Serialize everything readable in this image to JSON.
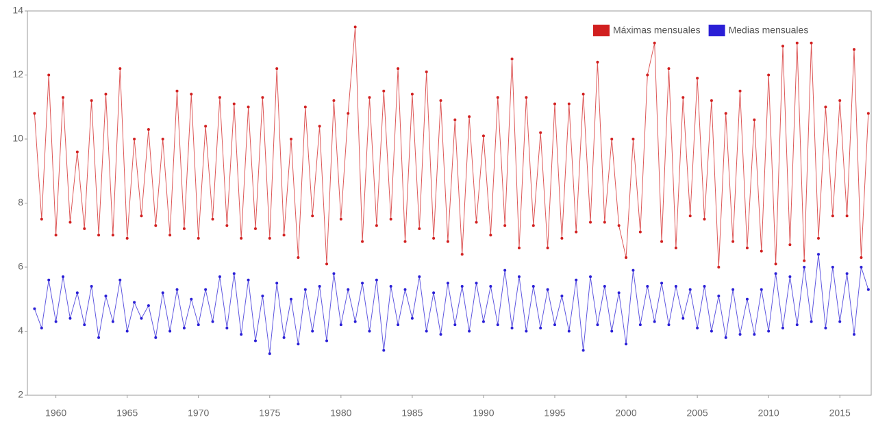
{
  "chart_data": {
    "type": "line",
    "x": [
      1958.5,
      1959,
      1959.5,
      1960,
      1960.5,
      1961,
      1961.5,
      1962,
      1962.5,
      1963,
      1963.5,
      1964,
      1964.5,
      1965,
      1965.5,
      1966,
      1966.5,
      1967,
      1967.5,
      1968,
      1968.5,
      1969,
      1969.5,
      1970,
      1970.5,
      1971,
      1971.5,
      1972,
      1972.5,
      1973,
      1973.5,
      1974,
      1974.5,
      1975,
      1975.5,
      1976,
      1976.5,
      1977,
      1977.5,
      1978,
      1978.5,
      1979,
      1979.5,
      1980,
      1980.5,
      1981,
      1981.5,
      1982,
      1982.5,
      1983,
      1983.5,
      1984,
      1984.5,
      1985,
      1985.5,
      1986,
      1986.5,
      1987,
      1987.5,
      1988,
      1988.5,
      1989,
      1989.5,
      1990,
      1990.5,
      1991,
      1991.5,
      1992,
      1992.5,
      1993,
      1993.5,
      1994,
      1994.5,
      1995,
      1995.5,
      1996,
      1996.5,
      1997,
      1997.5,
      1998,
      1998.5,
      1999,
      1999.5,
      2000,
      2000.5,
      2001,
      2001.5,
      2002,
      2002.5,
      2003,
      2003.5,
      2004,
      2004.5,
      2005,
      2005.5,
      2006,
      2006.5,
      2007,
      2007.5,
      2008,
      2008.5,
      2009,
      2009.5,
      2010,
      2010.5,
      2011,
      2011.5,
      2012,
      2012.5,
      2013,
      2013.5,
      2014,
      2014.5,
      2015,
      2015.5,
      2016,
      2016.5,
      2017
    ],
    "series": [
      {
        "name": "Máximas mensuales",
        "color": "#d11f1f",
        "values": [
          10.8,
          7.5,
          12.0,
          7.0,
          11.3,
          7.4,
          9.6,
          7.2,
          11.2,
          7.0,
          11.4,
          7.0,
          12.2,
          6.9,
          10.0,
          7.6,
          10.3,
          7.3,
          10.0,
          7.0,
          11.5,
          7.2,
          11.4,
          6.9,
          10.4,
          7.5,
          11.3,
          7.3,
          11.1,
          6.9,
          11.0,
          7.2,
          11.3,
          6.9,
          12.2,
          7.0,
          10.0,
          6.3,
          11.0,
          7.6,
          10.4,
          6.1,
          11.2,
          7.5,
          10.8,
          13.5,
          6.8,
          11.3,
          7.3,
          11.5,
          7.5,
          12.2,
          6.8,
          11.4,
          7.2,
          12.1,
          6.9,
          11.2,
          6.8,
          10.6,
          6.4,
          10.7,
          7.4,
          10.1,
          7.0,
          11.3,
          7.3,
          12.5,
          6.6,
          11.3,
          7.3,
          10.2,
          6.6,
          11.1,
          6.9,
          11.1,
          7.1,
          11.4,
          7.4,
          12.4,
          7.4,
          10.0,
          7.3,
          6.3,
          10.0,
          7.1,
          12.0,
          13.0,
          6.8,
          12.2,
          6.6,
          11.3,
          7.6,
          11.9,
          7.5,
          11.2,
          6.0,
          10.8,
          6.8,
          11.5,
          6.6,
          10.6,
          6.5,
          12.0,
          6.1,
          12.9,
          6.7,
          13.0,
          6.2,
          13.0,
          6.9,
          11.0,
          7.6,
          11.2,
          7.6,
          12.8,
          6.3,
          10.8
        ]
      },
      {
        "name": "Medias mensuales",
        "color": "#2a1fd6",
        "values": [
          4.7,
          4.1,
          5.6,
          4.3,
          5.7,
          4.4,
          5.2,
          4.2,
          5.4,
          3.8,
          5.1,
          4.3,
          5.6,
          4.0,
          4.9,
          4.4,
          4.8,
          3.8,
          5.2,
          4.0,
          5.3,
          4.1,
          5.0,
          4.2,
          5.3,
          4.3,
          5.7,
          4.1,
          5.8,
          3.9,
          5.6,
          3.7,
          5.1,
          3.3,
          5.5,
          3.8,
          5.0,
          3.6,
          5.3,
          4.0,
          5.4,
          3.7,
          5.8,
          4.2,
          5.3,
          4.3,
          5.5,
          4.0,
          5.6,
          3.4,
          5.4,
          4.2,
          5.3,
          4.4,
          5.7,
          4.0,
          5.2,
          3.9,
          5.5,
          4.2,
          5.4,
          4.0,
          5.5,
          4.3,
          5.4,
          4.2,
          5.9,
          4.1,
          5.7,
          4.0,
          5.4,
          4.1,
          5.3,
          4.2,
          5.1,
          4.0,
          5.6,
          3.4,
          5.7,
          4.2,
          5.4,
          4.0,
          5.2,
          3.6,
          5.9,
          4.2,
          5.4,
          4.3,
          5.5,
          4.2,
          5.4,
          4.4,
          5.3,
          4.1,
          5.4,
          4.0,
          5.1,
          3.8,
          5.3,
          3.9,
          5.0,
          3.9,
          5.3,
          4.0,
          5.8,
          4.1,
          5.7,
          4.2,
          6.0,
          4.3,
          6.4,
          4.1,
          6.0,
          4.3,
          5.8,
          3.9,
          6.0,
          5.3
        ]
      }
    ],
    "xlim": [
      1958,
      2017.2
    ],
    "xticks": [
      1960,
      1965,
      1970,
      1975,
      1980,
      1985,
      1990,
      1995,
      2000,
      2005,
      2010,
      2015
    ],
    "ylim": [
      2,
      14
    ],
    "yticks": [
      2,
      4,
      6,
      8,
      10,
      12,
      14
    ],
    "legend": "top-right"
  }
}
